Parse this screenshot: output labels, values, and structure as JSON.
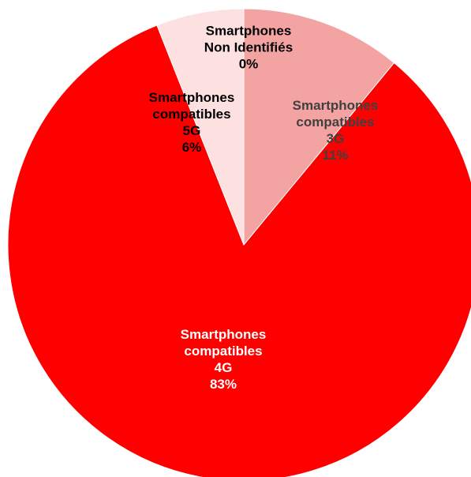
{
  "chart_data": {
    "type": "pie",
    "categories": [
      "Smartphones\ncompatibles\n3G",
      "Smartphones\ncompatibles\n4G",
      "Smartphones\ncompatibles\n5G",
      "Smartphones\nNon Identifiés"
    ],
    "values": [
      11,
      83,
      6,
      0
    ],
    "value_labels": [
      "11%",
      "83%",
      "6%",
      "0%"
    ],
    "colors": [
      "#f4a3a3",
      "#ff0000",
      "#fde1e1",
      "#ffffff"
    ]
  }
}
